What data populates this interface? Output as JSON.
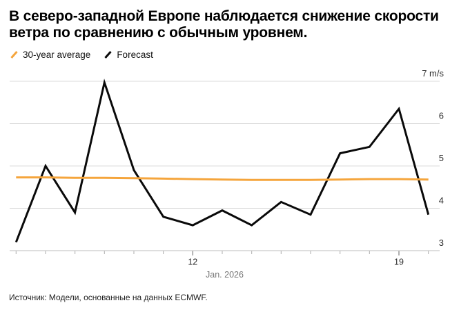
{
  "title": {
    "line1": "В северо-западной Европе наблюдается снижение скорости",
    "line2": "ветра по сравнению с обычным уровнем."
  },
  "source": "Источник: Модели, основанные на данных ECMWF.",
  "chart_data": {
    "type": "line",
    "x": [
      6,
      7,
      8,
      9,
      10,
      11,
      12,
      13,
      14,
      15,
      16,
      17,
      18,
      19,
      20
    ],
    "x_axis_caption": "Jan. 2026",
    "x_ticks_labeled": [
      {
        "value": 12,
        "label": "12"
      },
      {
        "value": 19,
        "label": "19"
      }
    ],
    "y_ticks": [
      {
        "value": 3,
        "label": "3"
      },
      {
        "value": 4,
        "label": "4"
      },
      {
        "value": 5,
        "label": "5"
      },
      {
        "value": 6,
        "label": "6"
      },
      {
        "value": 7,
        "label": "7 m/s"
      }
    ],
    "ylim": [
      3,
      7
    ],
    "xlim": [
      6,
      20
    ],
    "grid": true,
    "legend_position": "top-left",
    "series": [
      {
        "name": "30-year average",
        "color": "#F5A53C",
        "values": [
          4.73,
          4.73,
          4.72,
          4.72,
          4.71,
          4.7,
          4.69,
          4.68,
          4.67,
          4.67,
          4.67,
          4.68,
          4.69,
          4.69,
          4.68
        ]
      },
      {
        "name": "Forecast",
        "color": "#0A0A0A",
        "values": [
          3.2,
          5.0,
          3.9,
          6.97,
          4.9,
          3.8,
          3.6,
          3.95,
          3.6,
          4.15,
          3.85,
          5.3,
          5.45,
          6.35,
          3.85
        ]
      }
    ]
  }
}
